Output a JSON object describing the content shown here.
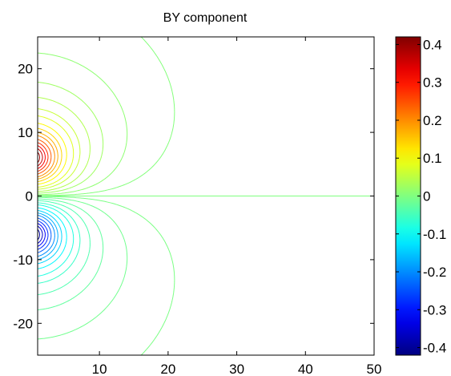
{
  "chart_data": {
    "type": "contour",
    "title": "BY component",
    "xlabel": "",
    "ylabel": "",
    "xlim": [
      1,
      50
    ],
    "ylim": [
      -25,
      25
    ],
    "x_ticks": [
      10,
      20,
      30,
      40,
      50
    ],
    "y_ticks": [
      20,
      10,
      0,
      -10,
      -20
    ],
    "x_tick_labels": [
      "10",
      "20",
      "30",
      "40",
      "50"
    ],
    "y_tick_labels": [
      "20",
      "10",
      "0",
      "-10",
      "-20"
    ],
    "grid": false,
    "colormap": "jet",
    "sources": [
      {
        "name": "positive",
        "x": 0,
        "y": 6,
        "peak": 0.42
      },
      {
        "name": "negative",
        "x": 0,
        "y": -6,
        "peak": -0.42
      }
    ],
    "zero_contour_y": 0,
    "colorbar": {
      "range": [
        -0.42,
        0.42
      ],
      "ticks": [
        0.4,
        0.3,
        0.2,
        0.1,
        0,
        -0.1,
        -0.2,
        -0.3,
        -0.4
      ],
      "tick_labels": [
        "0.4",
        "0.3",
        "0.2",
        "0.1",
        "0",
        "-0.1",
        "-0.2",
        "-0.3",
        "-0.4"
      ],
      "location": "right"
    },
    "contour_levels": [
      0.4,
      0.36,
      0.32,
      0.28,
      0.24,
      0.2,
      0.17,
      0.14,
      0.11,
      0.08,
      0.06,
      0.04,
      0.025,
      0.012,
      0.004,
      -0.004,
      -0.012,
      -0.025,
      -0.04,
      -0.06,
      -0.08,
      -0.11,
      -0.14,
      -0.17,
      -0.2,
      -0.24,
      -0.28,
      -0.32,
      -0.36,
      -0.4
    ]
  }
}
